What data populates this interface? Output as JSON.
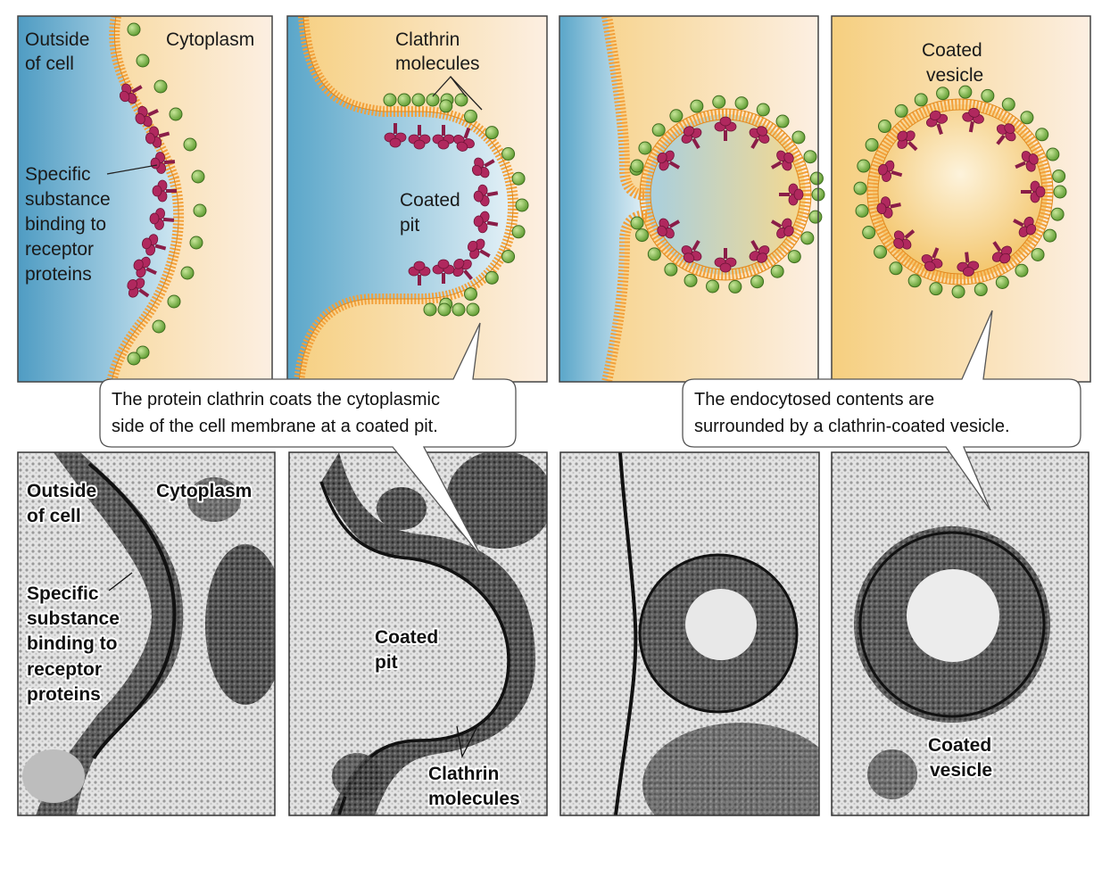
{
  "colors": {
    "outside": "#5aa6c9",
    "cytoplasm": "#f7d58d",
    "membrane": "#f2a03a",
    "clathrin": "#7ab648",
    "receptor": "#b0285e",
    "panel_border": "#444444",
    "callout_bg": "#ffffff"
  },
  "top_panels": {
    "panel1": {
      "outside_label": [
        "Outside",
        "of cell"
      ],
      "cytoplasm_label": "Cytoplasm",
      "substance_label": [
        "Specific",
        "substance",
        "binding to",
        "receptor",
        "proteins"
      ]
    },
    "panel2": {
      "clathrin_label": [
        "Clathrin",
        "molecules"
      ],
      "pit_label": [
        "Coated",
        "pit"
      ]
    },
    "panel4": {
      "vesicle_label": [
        "Coated",
        "vesicle"
      ]
    }
  },
  "callouts": {
    "left": [
      "The protein clathrin coats the cytoplasmic",
      "side of the cell membrane at a coated pit."
    ],
    "right": [
      "The endocytosed contents are",
      "surrounded by a clathrin-coated vesicle."
    ]
  },
  "bottom_panels": {
    "panel1": {
      "outside_label": [
        "Outside",
        "of cell"
      ],
      "cytoplasm_label": "Cytoplasm",
      "substance_label": [
        "Specific",
        "substance",
        "binding to",
        "receptor",
        "proteins"
      ]
    },
    "panel2": {
      "pit_label": [
        "Coated",
        "pit"
      ],
      "clathrin_label": [
        "Clathrin",
        "molecules"
      ]
    },
    "panel4": {
      "vesicle_label": [
        "Coated",
        "vesicle"
      ]
    }
  }
}
